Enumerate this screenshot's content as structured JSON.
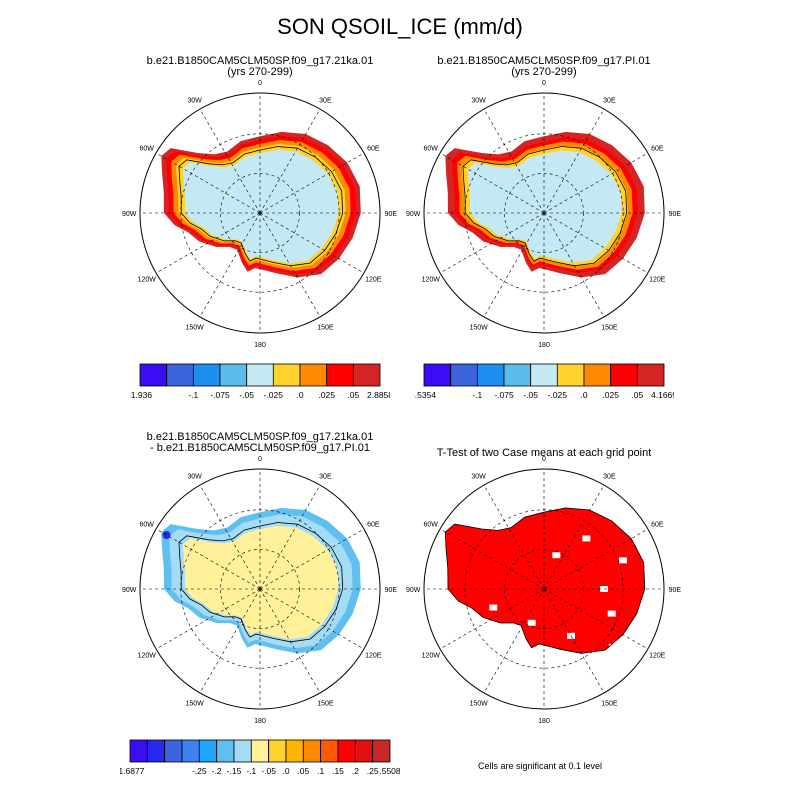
{
  "figure": {
    "title": "SON QSOIL_ICE (mm/d)",
    "footnote": "Cells are significant at 0.1 level"
  },
  "panels": [
    {
      "title_line1": "b.e21.B1850CAM5CLM50SP.f09_g17.21ka.01",
      "title_line2": "(yrs 270-299)"
    },
    {
      "title_line1": "b.e21.B1850CAM5CLM50SP.f09_g17.PI.01",
      "title_line2": "(yrs 270-299)"
    },
    {
      "title_line1": "b.e21.B1850CAM5CLM50SP.f09_g17.21ka.01",
      "title_line2": "- b.e21.B1850CAM5CLM50SP.f09_g17.PI.01"
    },
    {
      "title_line1": "T-Test of two Case means at each grid point",
      "title_line2": ""
    }
  ],
  "lon_labels": [
    "0",
    "30E",
    "60E",
    "90E",
    "120E",
    "150E",
    "180",
    "150W",
    "120W",
    "90W",
    "60W",
    "30W"
  ],
  "colorbars": [
    {
      "colors": [
        "#3a0df5",
        "#3c64dd",
        "#1e8ff0",
        "#5bbdee",
        "#c5e8f5",
        "#ffd22e",
        "#ff8a00",
        "#ff0000",
        "#d42424"
      ],
      "labels": [
        "-1.936",
        "-.1",
        "-.075",
        "-.05",
        "-.025",
        ".0",
        ".025",
        ".05",
        "2.8858"
      ]
    },
    {
      "colors": [
        "#3a0df5",
        "#3c64dd",
        "#1e8ff0",
        "#5bbdee",
        "#c5e8f5",
        "#ffd22e",
        "#ff8a00",
        "#ff0000",
        "#d42424"
      ],
      "labels": [
        "-.5354",
        "-.1",
        "-.075",
        "-.05",
        "-.025",
        ".0",
        ".025",
        ".05",
        "4.1669"
      ]
    },
    {
      "colors": [
        "#3a0df5",
        "#2828f0",
        "#3c64dd",
        "#3d82f0",
        "#1ea5f5",
        "#5fbff0",
        "#a4dcf5",
        "#fff09a",
        "#ffd22e",
        "#ffb400",
        "#ff8a00",
        "#ff5a00",
        "#ff0000",
        "#e01010",
        "#c82828"
      ],
      "labels": [
        "-1.6877",
        "-.25",
        "-.2",
        "-.15",
        "-.1",
        "-.05",
        ".0",
        ".05",
        ".1",
        ".15",
        ".2",
        ".25",
        ".5508"
      ]
    }
  ],
  "chart_data": [
    {
      "type": "heatmap",
      "projection": "south polar stereographic",
      "title": "b.e21.B1850CAM5CLM50SP.f09_g17.21ka.01 (yrs 270-299)",
      "units": "mm/d",
      "range": [
        -1.936,
        2.8858
      ],
      "contour_levels": [
        -0.1,
        -0.075,
        -0.05,
        -0.025,
        0,
        0.025,
        0.05
      ]
    },
    {
      "type": "heatmap",
      "projection": "south polar stereographic",
      "title": "b.e21.B1850CAM5CLM50SP.f09_g17.PI.01 (yrs 270-299)",
      "units": "mm/d",
      "range": [
        -0.5354,
        4.1669
      ],
      "contour_levels": [
        -0.1,
        -0.075,
        -0.05,
        -0.025,
        0,
        0.025,
        0.05
      ]
    },
    {
      "type": "heatmap",
      "projection": "south polar stereographic",
      "title": "b.e21.B1850CAM5CLM50SP.f09_g17.21ka.01 - b.e21.B1850CAM5CLM50SP.f09_g17.PI.01",
      "units": "mm/d",
      "range": [
        -1.6877,
        0.5508
      ],
      "contour_levels": [
        -0.25,
        -0.2,
        -0.15,
        -0.1,
        -0.05,
        0,
        0.05,
        0.1,
        0.15,
        0.2,
        0.25
      ]
    },
    {
      "type": "heatmap",
      "projection": "south polar stereographic",
      "title": "T-Test of two Case means at each grid point",
      "significance_level": 0.1
    }
  ]
}
